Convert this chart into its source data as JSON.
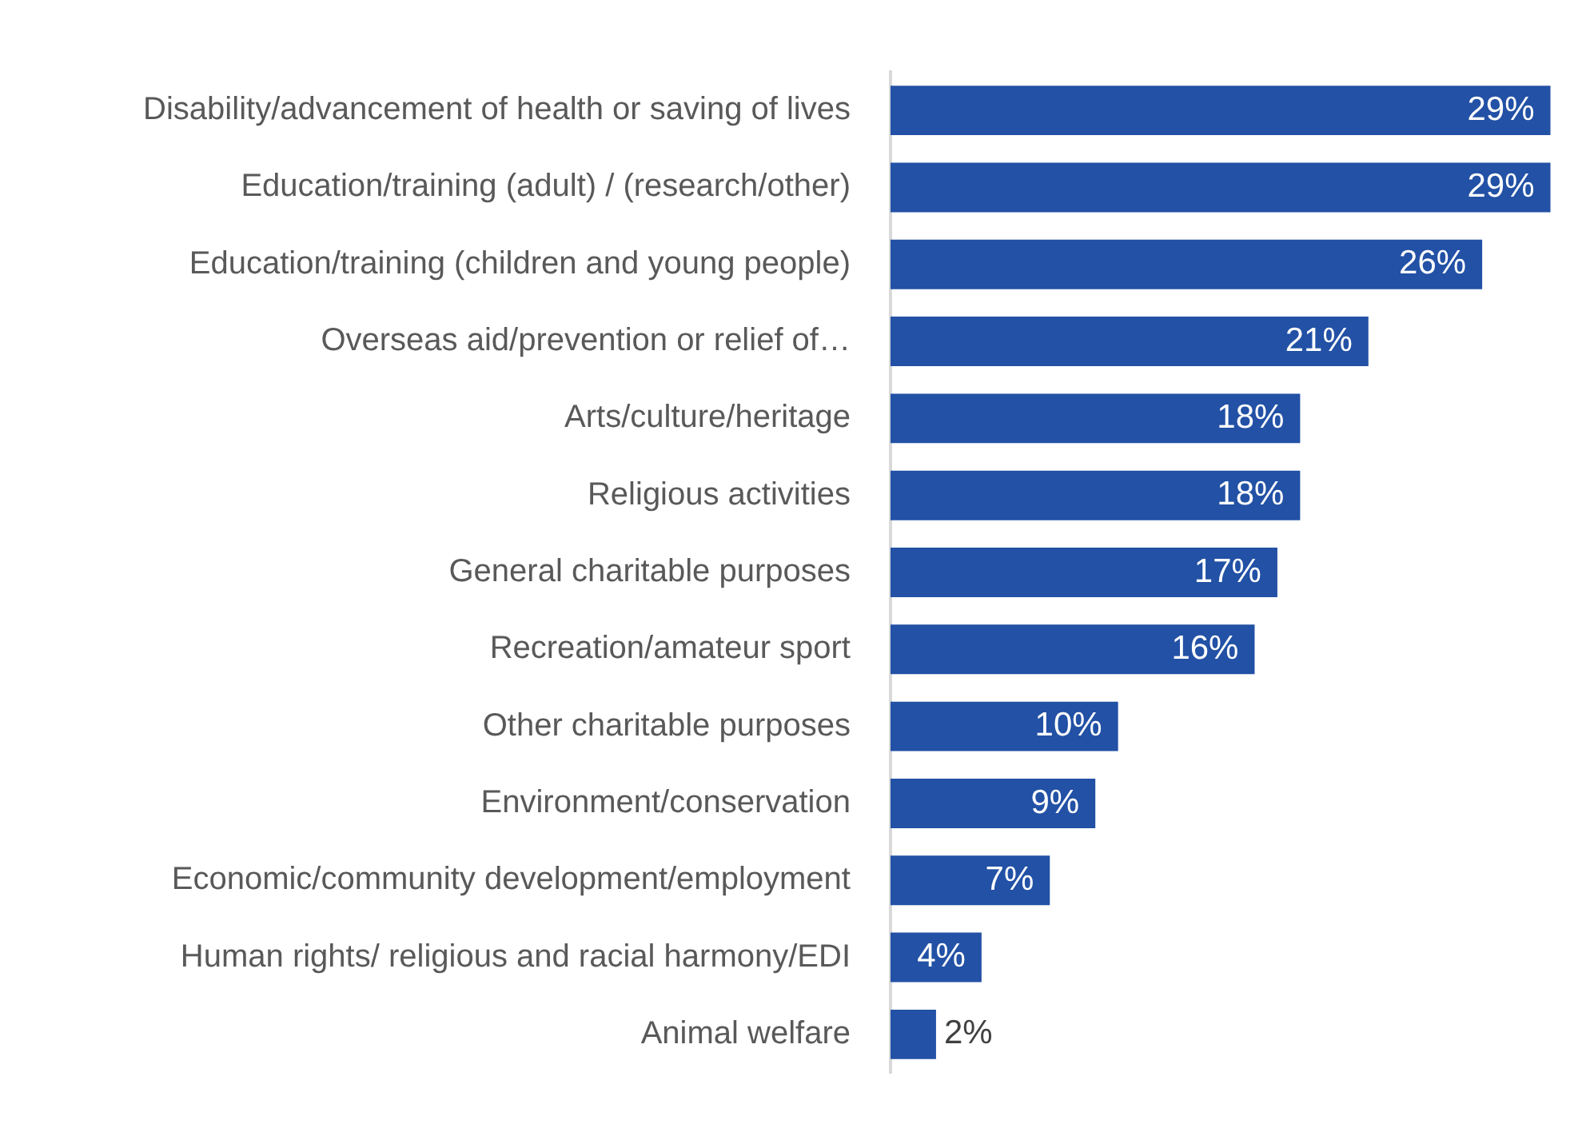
{
  "chart_data": {
    "type": "bar",
    "orientation": "horizontal",
    "categories": [
      "Disability/advancement of health or saving of lives",
      "Education/training (adult) / (research/other)",
      "Education/training (children and young people)",
      "Overseas aid/prevention or relief of…",
      "Arts/culture/heritage",
      "Religious activities",
      "General charitable purposes",
      "Recreation/amateur sport",
      "Other charitable purposes",
      "Environment/conservation",
      "Economic/community development/employment",
      "Human rights/ religious and racial harmony/EDI",
      "Animal welfare"
    ],
    "values": [
      29,
      29,
      26,
      21,
      18,
      18,
      17,
      16,
      10,
      9,
      7,
      4,
      2
    ],
    "color": "#2251a5",
    "value_labels": [
      "29%",
      "29%",
      "26%",
      "21%",
      "18%",
      "18%",
      "17%",
      "16%",
      "10%",
      "9%",
      "7%",
      "4%",
      "2%"
    ],
    "tick_labels": "y",
    "grid": false,
    "legend": false
  }
}
